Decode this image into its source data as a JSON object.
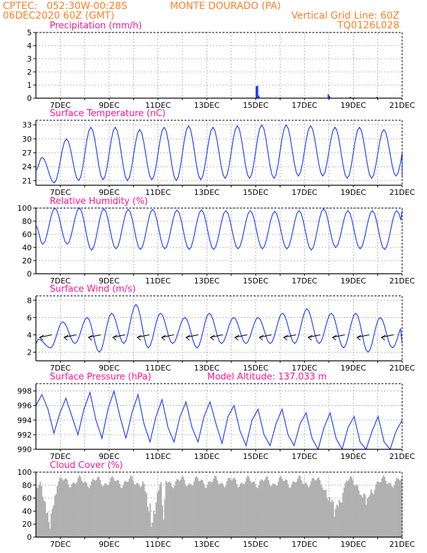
{
  "header": {
    "line1_left": "CPTEC:   052:30W-00:28S",
    "line1_right": "MONTE DOURADO (PA)",
    "line2_left": "06DEC2020 60Z (GMT)",
    "line2_right": "Vertical Grid Line: 60Z",
    "line3_right": "TQ0126L028"
  },
  "colors": {
    "line": "#1f3fff",
    "bar": "#b0b0b0",
    "title": "#ff1493",
    "header": "#ff7f27"
  },
  "x_axis": {
    "start_day": 6,
    "end_day": 21,
    "tick_labels": [
      "7DEC",
      "9DEC",
      "11DEC",
      "13DEC",
      "15DEC",
      "17DEC",
      "19DEC",
      "21DEC"
    ]
  },
  "chart_data": [
    {
      "type": "bar",
      "title": "Precipitation (mm/h)",
      "ylim": [
        0,
        5
      ],
      "yticks": [
        0,
        1,
        2,
        3,
        4,
        5
      ],
      "grid": true,
      "x": [
        15.0,
        15.05,
        15.1,
        16.0,
        17.95,
        18.0,
        18.85,
        19.0,
        19.95
      ],
      "values": [
        0.9,
        0.95,
        0.2,
        0.05,
        0.3,
        0.15,
        0.1,
        0.05,
        0.1
      ]
    },
    {
      "type": "line",
      "title": "Surface Temperature (nC)",
      "ylim": [
        20,
        34
      ],
      "yticks": [
        21,
        24,
        27,
        30,
        33
      ],
      "grid": true,
      "period_days": 1,
      "min_phase": 0.75,
      "maxima": [
        26,
        30,
        32.5,
        32.5,
        32,
        32.5,
        32.8,
        32.5,
        32.8,
        33,
        33,
        32.8,
        32.5,
        32.5,
        32,
        31.7
      ],
      "minima": [
        20.5,
        21,
        21.2,
        21,
        21.2,
        21,
        21.2,
        21.5,
        21.5,
        21.5,
        22,
        22,
        21.5,
        21.5,
        22,
        22
      ]
    },
    {
      "type": "line",
      "title": "Relative Humidity (%)",
      "ylim": [
        0,
        100
      ],
      "yticks": [
        0,
        20,
        40,
        60,
        80,
        100
      ],
      "grid": true,
      "period_days": 1,
      "min_phase": 0.28,
      "maxima": [
        100,
        100,
        99,
        98,
        98,
        97,
        97,
        96,
        96,
        95,
        96,
        99,
        96,
        96,
        96,
        96
      ],
      "minima": [
        45,
        45,
        36,
        38,
        37,
        38,
        37,
        37,
        38,
        38,
        38,
        36,
        40,
        38,
        37,
        40
      ]
    },
    {
      "type": "line",
      "title": "Surface Wind (m/s)",
      "ylim": [
        1,
        8.5
      ],
      "yticks": [
        2,
        4,
        6,
        8
      ],
      "grid": true,
      "period_days": 1,
      "min_phase": 0.6,
      "maxima": [
        3.5,
        5.5,
        6,
        6.5,
        7.5,
        6.5,
        6,
        6.5,
        6,
        6,
        6.5,
        7,
        6.5,
        6.5,
        6,
        5.5
      ],
      "minima": [
        2.5,
        3,
        2,
        3,
        2.5,
        3,
        2.5,
        3,
        3,
        3,
        3,
        3,
        2.5,
        2,
        2.5,
        3
      ],
      "vectors": {
        "x_phase": 0.65,
        "dx": -1,
        "dy": -0.6,
        "length_days": 0.5
      }
    },
    {
      "type": "line",
      "title": "Surface Pressure (hPa)",
      "annotation": "Model Altitude: 137.033 m",
      "ylim": [
        990,
        999
      ],
      "yticks": [
        990,
        992,
        994,
        996,
        998
      ],
      "grid": true,
      "values": [
        996.0,
        997.5,
        995.5,
        992.2,
        995.0,
        997.0,
        994.5,
        992.0,
        995.5,
        997.8,
        994.0,
        991.5,
        995.5,
        998.0,
        994.5,
        991.5,
        995.0,
        997.5,
        993.5,
        991.0,
        994.5,
        996.8,
        993.0,
        991.0,
        994.5,
        996.5,
        993.0,
        991.0,
        994.5,
        996.5,
        993.5,
        990.8,
        994.5,
        996.0,
        992.5,
        990.5,
        994.0,
        995.5,
        992.0,
        990.5,
        993.5,
        995.5,
        992.0,
        990.5,
        993.5,
        995.0,
        991.5,
        990.0,
        993.0,
        995.0,
        991.5,
        990.0,
        993.0,
        994.5,
        991.0,
        990.0,
        992.5,
        994.5,
        991.0,
        990.0,
        992.5,
        994.0
      ]
    },
    {
      "type": "bar",
      "title": "Cloud Cover (%)",
      "ylim": [
        0,
        100
      ],
      "yticks": [
        0,
        20,
        40,
        60,
        80,
        100
      ],
      "grid": true,
      "base_level": 85,
      "dips": [
        {
          "center": 6.5,
          "width": 0.35,
          "depth": 80
        },
        {
          "center": 10.7,
          "width": 0.35,
          "depth": 75
        },
        {
          "center": 11.2,
          "width": 0.1,
          "depth": 85
        },
        {
          "center": 18.2,
          "width": 0.5,
          "depth": 55
        },
        {
          "center": 19.5,
          "width": 0.4,
          "depth": 40
        }
      ]
    }
  ]
}
